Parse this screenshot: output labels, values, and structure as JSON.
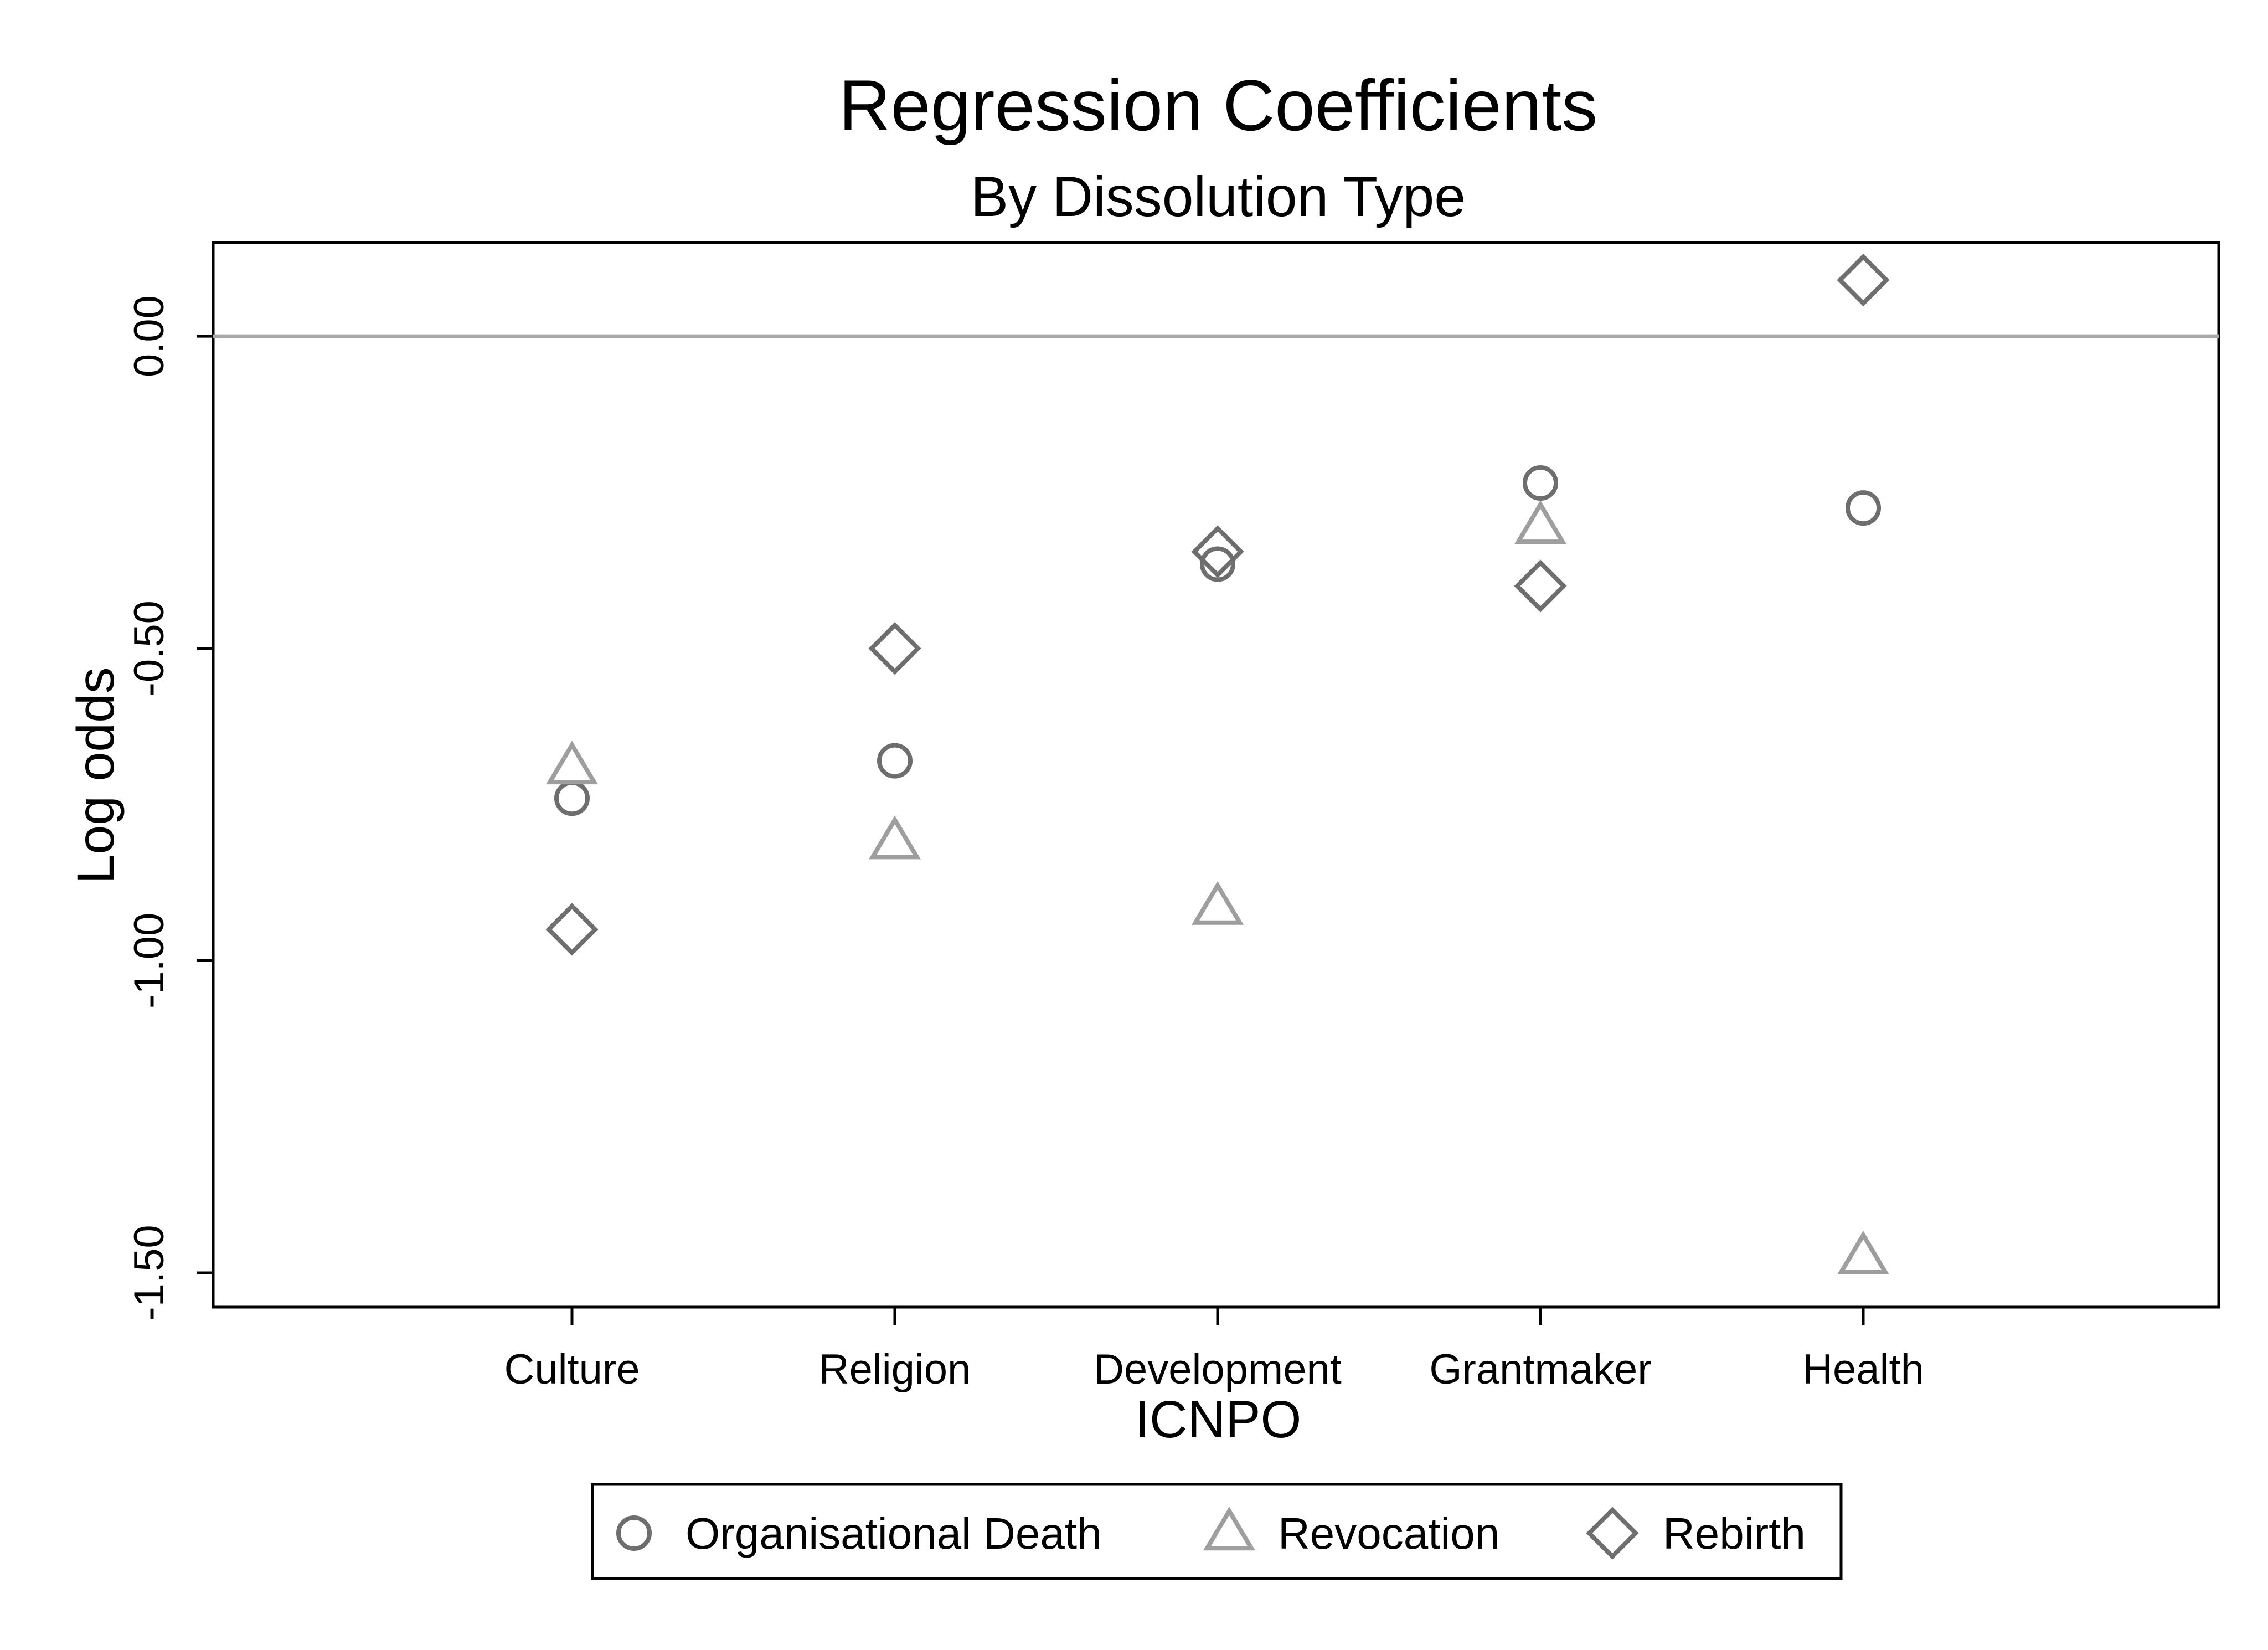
{
  "chart_data": {
    "type": "scatter",
    "title": "Regression Coefficients",
    "subtitle": "By Dissolution Type",
    "xlabel": "ICNPO",
    "ylabel": "Log odds",
    "categories": [
      "Culture",
      "Religion",
      "Development",
      "Grantmaker",
      "Health"
    ],
    "y_ticks": [
      0.0,
      -0.5,
      -1.0,
      -1.5
    ],
    "y_tick_labels": [
      "0.00",
      "-0.50",
      "-1.00",
      "-1.50"
    ],
    "ylim": [
      -1.555,
      0.15
    ],
    "reference_line": 0.0,
    "grid": false,
    "legend_position": "bottom",
    "series": [
      {
        "name": "Organisational Death",
        "marker": "circle",
        "color": "#6e6e6e",
        "values": [
          -0.74,
          -0.68,
          -0.365,
          -0.235,
          -0.275
        ]
      },
      {
        "name": "Revocation",
        "marker": "triangle",
        "color": "#9e9e9e",
        "values": [
          -0.69,
          -0.81,
          -0.915,
          -0.305,
          -1.475
        ]
      },
      {
        "name": "Rebirth",
        "marker": "diamond",
        "color": "#6e6e6e",
        "values": [
          -0.95,
          -0.5,
          -0.345,
          -0.4,
          0.09
        ]
      }
    ],
    "reference_line_color": "#a8a8a8"
  }
}
